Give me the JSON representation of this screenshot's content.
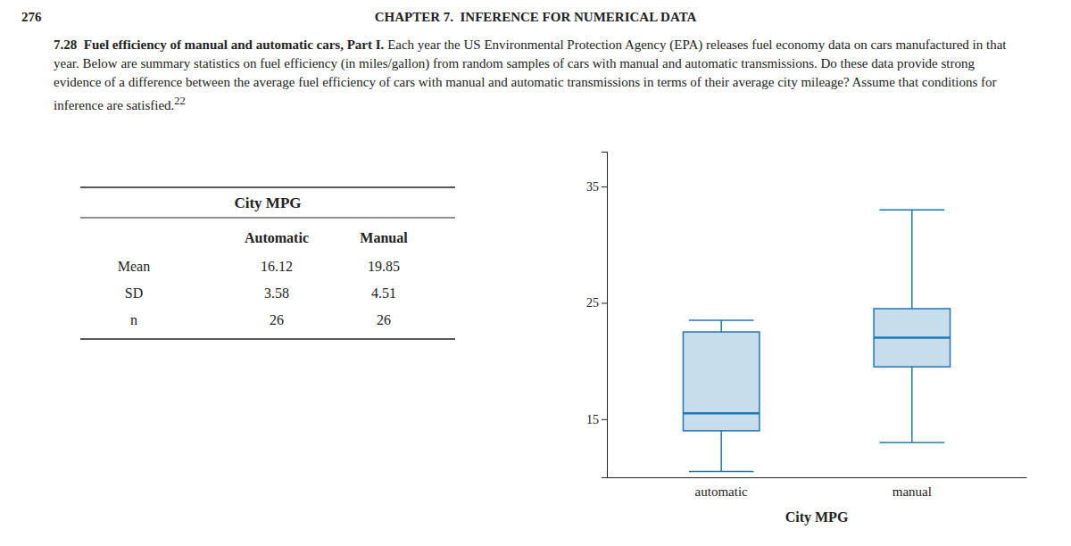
{
  "page": {
    "page_number": "276",
    "chapter_header": "CHAPTER 7.  INFERENCE FOR NUMERICAL DATA",
    "problem_number": "7.28",
    "problem_title": "Fuel efficiency of manual and automatic cars, Part I.",
    "problem_text": " Each year the US Environmental Protection Agency (EPA) releases fuel economy data on cars manufactured in that year. Below are summary statistics on fuel efficiency (in miles/gallon) from random samples of cars with manual and automatic transmissions. Do these data provide strong evidence of a difference between the average fuel efficiency of cars with manual and automatic transmissions in terms of their average city mileage? Assume that conditions for inference are satisfied.",
    "footnote": "22"
  },
  "table": {
    "title": "City MPG",
    "columns": [
      "Automatic",
      "Manual"
    ],
    "rows": [
      {
        "label": "Mean",
        "automatic": "16.12",
        "manual": "19.85"
      },
      {
        "label": "SD",
        "automatic": "3.58",
        "manual": "4.51"
      },
      {
        "label": "n",
        "automatic": "26",
        "manual": "26"
      }
    ]
  },
  "chart_data": {
    "type": "box",
    "xlabel": "City MPG",
    "categories": [
      "automatic",
      "manual"
    ],
    "whisker_low": [
      10.5,
      13.0
    ],
    "q1": [
      14.0,
      19.5
    ],
    "median": [
      15.5,
      22.0
    ],
    "q3": [
      22.5,
      24.5
    ],
    "whisker_high": [
      23.5,
      33.0
    ],
    "ylim": [
      10,
      38
    ],
    "yticks": [
      15,
      25,
      35
    ]
  }
}
